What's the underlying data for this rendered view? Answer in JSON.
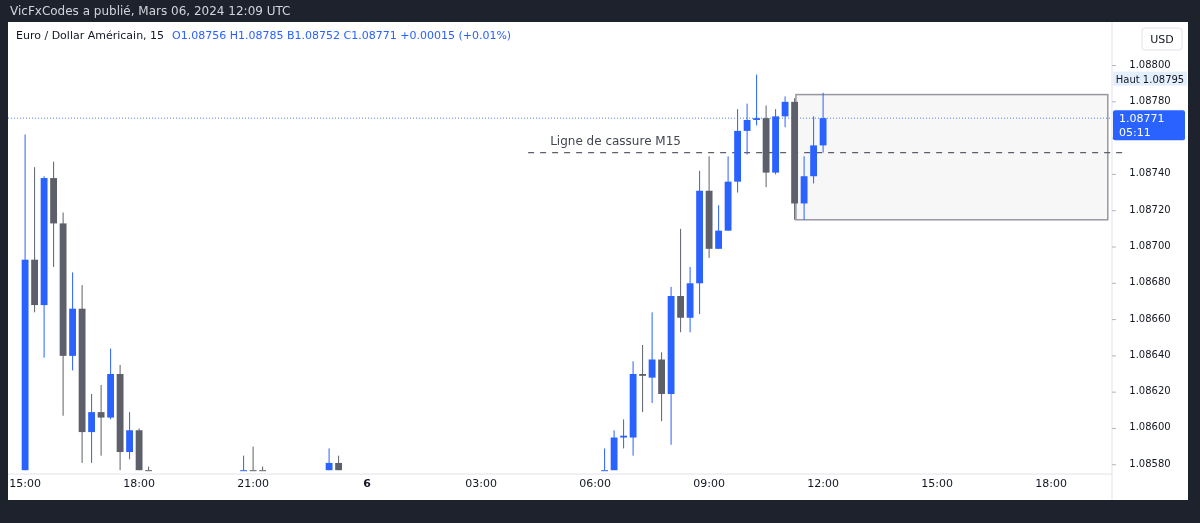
{
  "chart_data": {
    "type": "candlestick",
    "title": "Euro / Dollar Américain, 15",
    "subtitle": "VicFxCodes a publié, Mars 06, 2024 12:09 UTC",
    "ylabel": "USD",
    "annotations": [
      "O1.08756 H1.08785 B1.08752 C1.08771 +0.00015 (+0.01%)",
      "Haut 1.08795",
      "05:11"
    ],
    "x": [
      "2024-03-05T15:00",
      "2024-03-05T15:15",
      "2024-03-05T15:30",
      "2024-03-05T15:45",
      "2024-03-05T16:00",
      "2024-03-05T16:15",
      "2024-03-05T16:30",
      "2024-03-05T16:45",
      "2024-03-05T17:00",
      "2024-03-05T17:15",
      "2024-03-05T17:30",
      "2024-03-05T17:45",
      "2024-03-05T18:00",
      "2024-03-05T18:15",
      "2024-03-05T20:45",
      "2024-03-05T21:00",
      "2024-03-05T21:15",
      "2024-03-05T23:00",
      "2024-03-05T23:15",
      "2024-03-06T06:15",
      "2024-03-06T06:30",
      "2024-03-06T06:45",
      "2024-03-06T07:00",
      "2024-03-06T07:15",
      "2024-03-06T07:30",
      "2024-03-06T07:45",
      "2024-03-06T08:00",
      "2024-03-06T08:15",
      "2024-03-06T08:30",
      "2024-03-06T08:45",
      "2024-03-06T09:00",
      "2024-03-06T09:15",
      "2024-03-06T09:30",
      "2024-03-06T09:45",
      "2024-03-06T10:00",
      "2024-03-06T10:15",
      "2024-03-06T10:30",
      "2024-03-06T10:45",
      "2024-03-06T11:00",
      "2024-03-06T11:15",
      "2024-03-06T11:30",
      "2024-03-06T11:45",
      "2024-03-06T12:00"
    ],
    "ohlc": [
      [
        1.08577,
        1.08762,
        1.08577,
        1.08693
      ],
      [
        1.08693,
        1.08744,
        1.08664,
        1.08668
      ],
      [
        1.08668,
        1.08739,
        1.08639,
        1.08738
      ],
      [
        1.08738,
        1.08747,
        1.08689,
        1.08713
      ],
      [
        1.08713,
        1.08719,
        1.08607,
        1.0864
      ],
      [
        1.0864,
        1.08686,
        1.08632,
        1.08666
      ],
      [
        1.08666,
        1.08679,
        1.08581,
        1.08598
      ],
      [
        1.08598,
        1.08619,
        1.08581,
        1.08609
      ],
      [
        1.08609,
        1.08624,
        1.08585,
        1.08606
      ],
      [
        1.08606,
        1.08644,
        1.08605,
        1.0863
      ],
      [
        1.0863,
        1.08635,
        1.08577,
        1.08587
      ],
      [
        1.08587,
        1.08609,
        1.08583,
        1.08599
      ],
      [
        1.08599,
        1.086,
        1.08577,
        1.08577
      ],
      [
        1.08577,
        1.08579,
        1.08577,
        1.08577
      ],
      [
        1.08577,
        1.08585,
        1.08577,
        1.08577
      ],
      [
        1.08577,
        1.0859,
        1.08577,
        1.08577
      ],
      [
        1.08577,
        1.08579,
        1.08577,
        1.08577
      ],
      [
        1.08577,
        1.08589,
        1.08577,
        1.08581
      ],
      [
        1.08581,
        1.08585,
        1.08577,
        1.08577
      ],
      [
        1.08577,
        1.08589,
        1.08577,
        1.08577
      ],
      [
        1.08577,
        1.08599,
        1.08577,
        1.08595
      ],
      [
        1.08595,
        1.08605,
        1.08589,
        1.08596
      ],
      [
        1.08595,
        1.08637,
        1.08585,
        1.0863
      ],
      [
        1.0863,
        1.08646,
        1.08609,
        1.08629
      ],
      [
        1.08628,
        1.08664,
        1.08614,
        1.08638
      ],
      [
        1.08638,
        1.08642,
        1.08604,
        1.08619
      ],
      [
        1.08619,
        1.08678,
        1.08591,
        1.08673
      ],
      [
        1.08673,
        1.0871,
        1.08653,
        1.08661
      ],
      [
        1.08661,
        1.08689,
        1.08653,
        1.0868
      ],
      [
        1.0868,
        1.08742,
        1.08663,
        1.08731
      ],
      [
        1.08731,
        1.0875,
        1.08694,
        1.08699
      ],
      [
        1.08699,
        1.08723,
        1.08699,
        1.08709
      ],
      [
        1.08709,
        1.0875,
        1.08709,
        1.08736
      ],
      [
        1.08736,
        1.08776,
        1.0873,
        1.08764
      ],
      [
        1.08764,
        1.08779,
        1.08751,
        1.0877
      ],
      [
        1.0877,
        1.08795,
        1.08767,
        1.08771
      ],
      [
        1.08771,
        1.08778,
        1.08733,
        1.08741
      ],
      [
        1.08741,
        1.08776,
        1.0874,
        1.08772
      ],
      [
        1.08772,
        1.08783,
        1.08766,
        1.0878
      ],
      [
        1.0878,
        1.08782,
        1.08715,
        1.08724
      ],
      [
        1.08724,
        1.0875,
        1.08715,
        1.08739
      ],
      [
        1.08739,
        1.08772,
        1.08735,
        1.08756
      ],
      [
        1.08756,
        1.08785,
        1.08752,
        1.08771
      ]
    ],
    "colors": [
      "#2962ff",
      "#5d606b",
      "#2962ff",
      "#5d606b",
      "#5d606b",
      "#2962ff",
      "#5d606b",
      "#2962ff",
      "#5d606b",
      "#2962ff",
      "#5d606b",
      "#2962ff",
      "#5d606b",
      "#5d606b",
      "#2962ff",
      "#5d606b",
      "#5d606b",
      "#2962ff",
      "#5d606b",
      "#2962ff",
      "#2962ff",
      "#2962ff",
      "#2962ff",
      "#5d606b",
      "#2962ff",
      "#5d606b",
      "#2962ff",
      "#5d606b",
      "#2962ff",
      "#2962ff",
      "#5d606b",
      "#2962ff",
      "#2962ff",
      "#2962ff",
      "#2962ff",
      "#2962ff",
      "#5d606b",
      "#2962ff",
      "#2962ff",
      "#5d606b",
      "#2962ff",
      "#2962ff",
      "#2962ff"
    ],
    "xlim": [
      "2024-03-05T14:33",
      "2024-03-06T19:33"
    ],
    "xticks": [
      {
        "value": "2024-03-05T15:00",
        "label": "15:00"
      },
      {
        "value": "2024-03-05T18:00",
        "label": "18:00"
      },
      {
        "value": "2024-03-05T21:00",
        "label": "21:00"
      },
      {
        "value": "2024-03-06T00:00",
        "label": "6"
      },
      {
        "value": "2024-03-06T03:00",
        "label": "03:00"
      },
      {
        "value": "2024-03-06T06:00",
        "label": "06:00"
      },
      {
        "value": "2024-03-06T09:00",
        "label": "09:00"
      },
      {
        "value": "2024-03-06T12:00",
        "label": "12:00"
      },
      {
        "value": "2024-03-06T15:00",
        "label": "15:00"
      },
      {
        "value": "2024-03-06T18:00",
        "label": "18:00"
      }
    ],
    "ylim": [
      1.08576,
      1.08824
    ],
    "yticks": [
      {
        "value": 1.0858,
        "label": "1.08580"
      },
      {
        "value": 1.086,
        "label": "1.08600"
      },
      {
        "value": 1.0862,
        "label": "1.08620"
      },
      {
        "value": 1.0864,
        "label": "1.08640"
      },
      {
        "value": 1.0866,
        "label": "1.08660"
      },
      {
        "value": 1.0868,
        "label": "1.08680"
      },
      {
        "value": 1.087,
        "label": "1.08700"
      },
      {
        "value": 1.0872,
        "label": "1.08720"
      },
      {
        "value": 1.0874,
        "label": "1.08740"
      },
      {
        "value": 1.0876,
        "label": null
      },
      {
        "value": 1.0878,
        "label": "1.08780"
      },
      {
        "value": 1.088,
        "label": "1.08800"
      }
    ],
    "ref_lines": [
      {
        "axis": "y",
        "value": 1.08752,
        "label": "Ligne de cassure M15",
        "color": "#5d606b",
        "line_style": "dashed"
      },
      {
        "axis": "y",
        "value": 1.08771,
        "label": "1.08771",
        "color": "#2962ff",
        "line_style": "dotted"
      }
    ],
    "bands": [
      {
        "axis": "y",
        "from": 1.08715,
        "to": 1.08784,
        "color": "#9598a1"
      }
    ],
    "grid": false
  }
}
